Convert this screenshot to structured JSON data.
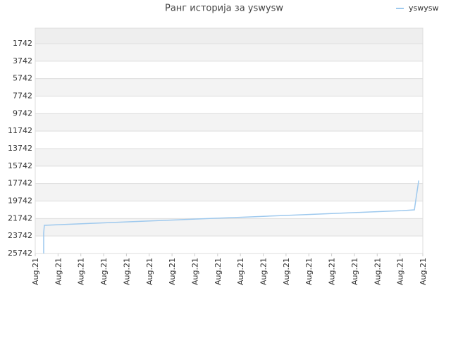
{
  "chart_data": {
    "type": "line",
    "title": "Ранг историја за yswysw",
    "x": [
      0.37,
      0.37,
      0.4,
      1.1,
      1.85,
      2.6,
      3.35,
      4.1,
      4.85,
      5.6,
      6.35,
      7.1,
      7.85,
      8.6,
      9.35,
      10.1,
      10.85,
      11.6,
      12.35,
      13.1,
      13.85,
      14.6,
      15.35,
      16.1,
      16.63,
      16.7,
      16.82
    ],
    "series": [
      {
        "name": "yswysw",
        "color": "#9ec9ee",
        "values": [
          25742,
          23400,
          22520,
          22440,
          22360,
          22280,
          22200,
          22120,
          22040,
          21960,
          21880,
          21800,
          21720,
          21640,
          21560,
          21480,
          21400,
          21320,
          21240,
          21160,
          21080,
          21000,
          20920,
          20840,
          20750,
          19500,
          17400
        ]
      }
    ],
    "xlim": [
      0,
      17
    ],
    "xticks": [
      {
        "value": 0,
        "label": "Aug.21"
      },
      {
        "value": 1,
        "label": "Aug.21"
      },
      {
        "value": 2,
        "label": "Aug.21"
      },
      {
        "value": 3,
        "label": "Aug.21"
      },
      {
        "value": 4,
        "label": "Aug.21"
      },
      {
        "value": 5,
        "label": "Aug.21"
      },
      {
        "value": 6,
        "label": "Aug.21"
      },
      {
        "value": 7,
        "label": "Aug.21"
      },
      {
        "value": 8,
        "label": "Aug.21"
      },
      {
        "value": 9,
        "label": "Aug.21"
      },
      {
        "value": 10,
        "label": "Aug.21"
      },
      {
        "value": 11,
        "label": "Aug.21"
      },
      {
        "value": 12,
        "label": "Aug.21"
      },
      {
        "value": 13,
        "label": "Aug.21"
      },
      {
        "value": 14,
        "label": "Aug.21"
      },
      {
        "value": 15,
        "label": "Aug.21"
      },
      {
        "value": 16,
        "label": "Aug.21"
      },
      {
        "value": 17,
        "label": "Aug.21"
      }
    ],
    "ylim": [
      25742,
      -30
    ],
    "yticks": [
      1742,
      3742,
      5742,
      7742,
      9742,
      11742,
      13742,
      15742,
      17742,
      19742,
      21742,
      23742,
      25742
    ],
    "grid": true,
    "legend": "top-right"
  }
}
